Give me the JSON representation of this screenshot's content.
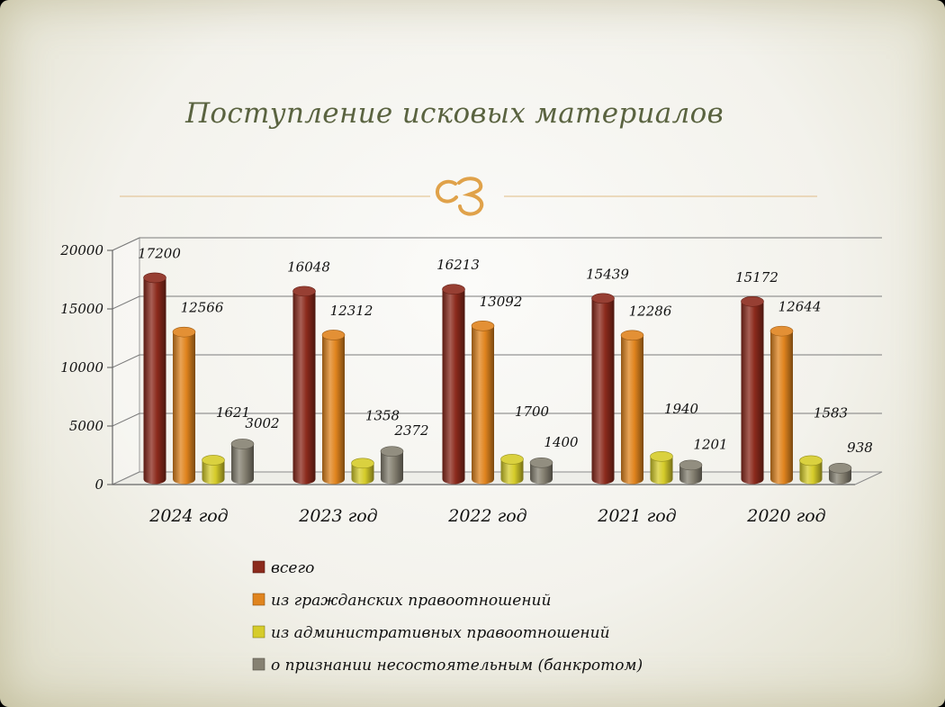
{
  "slide": {
    "title": "Поступление исковых материалов",
    "colors": {
      "title": "#5a6340",
      "ornament": "#e0a24a",
      "rule": "#e4c79b"
    }
  },
  "chart_data": {
    "type": "bar",
    "categories": [
      "2024 год",
      "2023 год",
      "2022 год",
      "2021 год",
      "2020 год"
    ],
    "series": [
      {
        "name": "всего",
        "color": "#8b2a1c",
        "values": [
          17200,
          16048,
          16213,
          15439,
          15172
        ]
      },
      {
        "name": "из гражданских правоотношений",
        "color": "#e0841e",
        "values": [
          12566,
          12312,
          13092,
          12286,
          12644
        ]
      },
      {
        "name": "из административных правоотношений",
        "color": "#d6cc2a",
        "values": [
          1621,
          1358,
          1700,
          1940,
          1583
        ]
      },
      {
        "name": "о признании несостоятельным (банкротом)",
        "color": "#868172",
        "values": [
          3002,
          2372,
          1400,
          1201,
          938
        ]
      }
    ],
    "yticks": [
      0,
      5000,
      10000,
      15000,
      20000
    ],
    "ylim": [
      0,
      20000
    ],
    "grid": true,
    "legend_position": "bottom"
  }
}
